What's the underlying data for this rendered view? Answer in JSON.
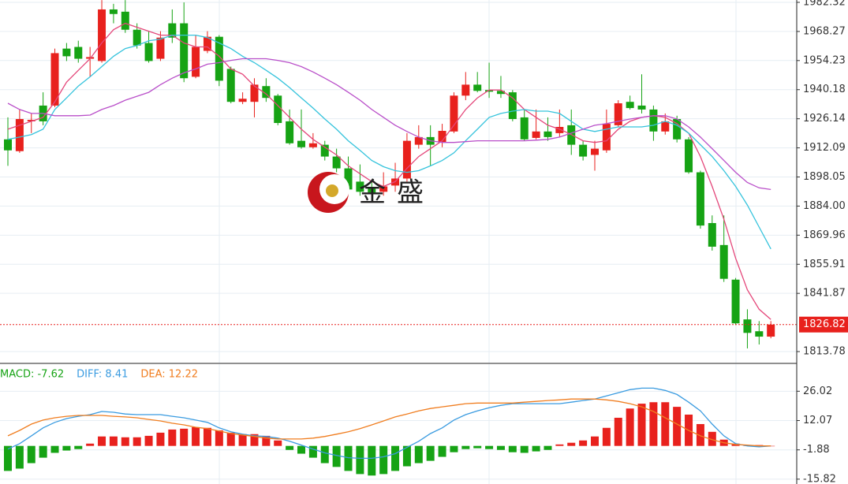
{
  "chart_data": [
    {
      "type": "candlestick",
      "open": [
        1916.2,
        1910.5,
        1924.9,
        1932.5,
        1932.5,
        1960.0,
        1960.8,
        1955.1,
        1954.0,
        1978.9,
        1977.8,
        1969.1,
        1962.7,
        1955.1,
        1972.2,
        1972.2,
        1946.4,
        1958.9,
        1965.7,
        1950.2,
        1934.3,
        1934.3,
        1941.9,
        1937.3,
        1924.9,
        1915.5,
        1912.4,
        1913.6,
        1907.9,
        1902.2,
        1895.8,
        1892.8,
        1890.9,
        1893.9,
        1897.3,
        1913.6,
        1917.3,
        1914.7,
        1920.0,
        1937.3,
        1942.6,
        1940.0,
        1939.6,
        1938.9,
        1926.8,
        1916.9,
        1920.0,
        1919.2,
        1923.0,
        1913.6,
        1908.7,
        1910.9,
        1923.0,
        1934.3,
        1932.5,
        1930.6,
        1920.0,
        1926.0,
        1916.2,
        1900.3,
        1875.8,
        1865.2,
        1848.5,
        1829.3,
        1823.6,
        1821.0
      ],
      "high": [
        1926.8,
        1930.6,
        1928.7,
        1938.9,
        1960.0,
        1962.7,
        1963.8,
        1960.8,
        1983.4,
        1981.6,
        1983.4,
        1972.2,
        1968.4,
        1968.4,
        1978.9,
        1982.3,
        1966.5,
        1968.4,
        1966.5,
        1951.3,
        1938.9,
        1945.7,
        1945.7,
        1938.1,
        1930.6,
        1930.6,
        1919.2,
        1915.5,
        1911.7,
        1907.9,
        1904.1,
        1896.5,
        1900.3,
        1904.9,
        1919.2,
        1923.0,
        1923.0,
        1923.7,
        1938.9,
        1948.7,
        1948.7,
        1953.2,
        1946.8,
        1940.0,
        1930.6,
        1930.6,
        1926.8,
        1930.6,
        1930.6,
        1915.5,
        1915.5,
        1930.6,
        1935.1,
        1937.3,
        1947.6,
        1932.5,
        1928.7,
        1927.6,
        1917.3,
        1901.1,
        1879.5,
        1879.5,
        1849.3,
        1834.2,
        1828.5,
        1828.5
      ],
      "low": [
        1903.4,
        1909.7,
        1919.2,
        1923.0,
        1931.7,
        1954.0,
        1953.2,
        1946.4,
        1953.2,
        1972.2,
        1967.6,
        1960.0,
        1953.2,
        1954.0,
        1962.7,
        1943.8,
        1945.7,
        1957.8,
        1941.9,
        1933.6,
        1933.2,
        1926.8,
        1934.3,
        1923.0,
        1913.6,
        1911.7,
        1911.7,
        1906.0,
        1900.3,
        1889.7,
        1889.0,
        1889.0,
        1889.0,
        1890.9,
        1895.8,
        1911.7,
        1903.4,
        1912.4,
        1919.2,
        1935.1,
        1938.9,
        1936.2,
        1936.2,
        1924.9,
        1915.5,
        1916.2,
        1915.5,
        1917.3,
        1908.7,
        1906.0,
        1901.1,
        1909.7,
        1922.2,
        1930.6,
        1928.7,
        1915.5,
        1918.5,
        1914.7,
        1899.6,
        1873.1,
        1862.5,
        1847.4,
        1826.6,
        1815.3,
        1817.2,
        1820.2
      ],
      "close": [
        1910.9,
        1926.0,
        1925.6,
        1924.9,
        1957.8,
        1956.3,
        1955.1,
        1955.9,
        1978.9,
        1976.7,
        1969.1,
        1961.5,
        1954.0,
        1965.3,
        1965.3,
        1945.7,
        1960.8,
        1965.7,
        1944.5,
        1934.3,
        1935.8,
        1942.6,
        1936.2,
        1924.1,
        1914.3,
        1912.4,
        1914.3,
        1907.9,
        1902.2,
        1892.0,
        1890.9,
        1890.5,
        1893.5,
        1897.3,
        1915.5,
        1917.3,
        1913.6,
        1920.3,
        1937.3,
        1942.6,
        1939.6,
        1939.2,
        1938.1,
        1926.0,
        1916.2,
        1920.0,
        1917.3,
        1922.2,
        1913.6,
        1907.9,
        1911.7,
        1923.7,
        1933.6,
        1931.3,
        1930.6,
        1920.0,
        1924.9,
        1916.2,
        1900.3,
        1874.6,
        1864.4,
        1848.9,
        1827.4,
        1822.8,
        1821.0,
        1826.82
      ],
      "up_color": "#e8211d",
      "down_color": "#16a314",
      "series": [
        {
          "color": "#e4477a",
          "values": [
            1921.1,
            1923.0,
            1924.9,
            1926.8,
            1934.3,
            1943.8,
            1949.5,
            1955.1,
            1962.7,
            1969.1,
            1972.2,
            1970.3,
            1968.4,
            1966.5,
            1966.5,
            1962.7,
            1960.8,
            1960.8,
            1956.3,
            1950.2,
            1947.6,
            1941.9,
            1938.1,
            1932.5,
            1926.8,
            1921.1,
            1916.2,
            1912.4,
            1908.7,
            1903.4,
            1899.6,
            1895.8,
            1893.5,
            1895.8,
            1902.2,
            1907.9,
            1911.7,
            1915.5,
            1923.0,
            1930.6,
            1936.2,
            1940.0,
            1940.0,
            1936.2,
            1930.6,
            1926.8,
            1923.0,
            1921.1,
            1918.5,
            1915.5,
            1914.7,
            1915.5,
            1921.1,
            1924.9,
            1926.8,
            1927.6,
            1926.8,
            1923.8,
            1919.2,
            1907.9,
            1893.5,
            1877.6,
            1858.8,
            1843.6,
            1834.2,
            1829.3
          ]
        },
        {
          "color": "#35c3dc",
          "values": [
            1916.2,
            1917.3,
            1918.5,
            1921.1,
            1930.6,
            1936.2,
            1941.9,
            1946.4,
            1951.3,
            1956.3,
            1960.0,
            1961.5,
            1963.8,
            1964.6,
            1966.5,
            1966.5,
            1966.5,
            1965.3,
            1962.7,
            1960.0,
            1956.3,
            1953.2,
            1949.5,
            1945.7,
            1941.2,
            1936.2,
            1931.3,
            1926.0,
            1921.1,
            1915.5,
            1910.9,
            1906.0,
            1903.0,
            1901.1,
            1900.3,
            1901.1,
            1903.4,
            1906.0,
            1909.7,
            1915.5,
            1921.1,
            1926.8,
            1928.7,
            1929.8,
            1930.6,
            1929.8,
            1929.8,
            1928.7,
            1924.9,
            1921.1,
            1920.0,
            1921.1,
            1922.2,
            1922.2,
            1922.2,
            1923.0,
            1924.9,
            1923.0,
            1919.2,
            1913.6,
            1907.9,
            1901.1,
            1893.5,
            1884.5,
            1873.9,
            1863.3
          ]
        },
        {
          "color": "#b94fc9",
          "values": [
            1933.6,
            1930.6,
            1928.7,
            1928.7,
            1927.6,
            1927.6,
            1927.6,
            1927.9,
            1930.6,
            1932.5,
            1935.1,
            1937.0,
            1938.9,
            1942.6,
            1945.7,
            1948.3,
            1950.2,
            1952.5,
            1953.2,
            1954.3,
            1955.1,
            1955.1,
            1955.1,
            1954.3,
            1953.2,
            1951.3,
            1948.7,
            1945.7,
            1942.6,
            1938.9,
            1935.1,
            1930.6,
            1926.8,
            1923.0,
            1920.0,
            1917.3,
            1915.5,
            1914.7,
            1914.7,
            1915.1,
            1915.5,
            1915.5,
            1915.5,
            1915.5,
            1915.5,
            1915.8,
            1916.2,
            1917.3,
            1919.2,
            1921.1,
            1923.0,
            1923.8,
            1924.9,
            1926.0,
            1926.8,
            1927.6,
            1927.6,
            1926.0,
            1922.2,
            1917.3,
            1911.7,
            1906.0,
            1900.3,
            1895.4,
            1892.8,
            1892.0
          ]
        }
      ],
      "ylim": [
        1809.6,
        1983.45
      ],
      "yticks": [
        1982.32,
        1968.27,
        1954.23,
        1940.18,
        1926.14,
        1912.09,
        1898.05,
        {
          "value": 1884,
          "label": "1884.00"
        },
        1869.96,
        1855.91,
        1841.87,
        1813.78
      ],
      "grid": true,
      "last_price": 1826.82,
      "watermark": "金盛"
    },
    {
      "type": "macd",
      "label": "MACD: -7.62",
      "label_color": "#16a314",
      "values": [
        -11.9,
        -10.8,
        -8.2,
        -5.6,
        -3.3,
        -2.2,
        -1.5,
        1.1,
        4.5,
        4.5,
        4.1,
        4.1,
        4.8,
        6.3,
        7.8,
        8.2,
        8.9,
        8.6,
        7.4,
        6.3,
        5.6,
        5.6,
        4.8,
        2.6,
        -1.9,
        -3.7,
        -5.6,
        -8.2,
        -10.0,
        -11.9,
        -13.4,
        -14.1,
        -13.4,
        -11.9,
        -9.7,
        -8.2,
        -7.1,
        -5.2,
        -3.0,
        -1.5,
        -1.1,
        -1.5,
        -1.9,
        -3.0,
        -3.3,
        -2.6,
        -1.9,
        0.7,
        1.5,
        2.6,
        4.5,
        8.6,
        13.4,
        17.8,
        20.1,
        20.8,
        20.8,
        18.6,
        14.9,
        10.4,
        6.7,
        3.0,
        1.1,
        0.4,
        0.4,
        0.0
      ],
      "up_color": "#e8211d",
      "down_color": "#16a314",
      "series": [
        {
          "name": "DIFF: 8.41",
          "color": "#3a9be0",
          "values": [
            -1.5,
            1.1,
            4.8,
            8.6,
            11.2,
            13.0,
            14.1,
            14.9,
            16.4,
            16.0,
            15.2,
            14.9,
            14.9,
            14.9,
            14.1,
            13.4,
            12.3,
            11.2,
            8.6,
            6.7,
            5.6,
            4.8,
            4.5,
            3.7,
            2.2,
            0.4,
            -1.5,
            -3.3,
            -4.5,
            -5.6,
            -5.9,
            -5.9,
            -5.2,
            -3.7,
            -0.7,
            2.2,
            5.9,
            8.6,
            12.3,
            14.9,
            16.7,
            18.2,
            19.3,
            20.1,
            20.1,
            20.1,
            20.1,
            20.1,
            20.8,
            21.6,
            22.3,
            23.8,
            25.3,
            26.8,
            27.5,
            27.5,
            26.4,
            24.5,
            20.8,
            16.7,
            10.4,
            4.8,
            1.1,
            0.0,
            -0.4,
            0.0
          ]
        },
        {
          "name": "DEA: 12.22",
          "color": "#f07d1f",
          "values": [
            4.8,
            7.4,
            10.4,
            12.3,
            13.4,
            14.1,
            14.5,
            14.5,
            14.5,
            14.1,
            13.8,
            13.4,
            12.6,
            11.9,
            10.8,
            10.0,
            8.9,
            8.2,
            7.1,
            5.9,
            5.2,
            4.5,
            3.7,
            3.3,
            3.3,
            3.3,
            3.7,
            4.5,
            5.6,
            6.7,
            8.2,
            10.0,
            11.9,
            13.8,
            15.2,
            16.7,
            17.8,
            18.6,
            19.3,
            20.1,
            20.4,
            20.4,
            20.4,
            20.4,
            20.8,
            21.2,
            21.6,
            21.9,
            22.3,
            22.3,
            22.3,
            21.9,
            21.2,
            20.1,
            18.6,
            16.4,
            13.4,
            10.4,
            7.4,
            4.8,
            3.0,
            1.5,
            0.7,
            0.4,
            0.0,
            0.0
          ]
        }
      ],
      "ylim": [
        -17.0,
        38.9
      ],
      "yticks": [
        26.02,
        12.07,
        -1.88,
        -15.82
      ],
      "grid": true
    }
  ]
}
